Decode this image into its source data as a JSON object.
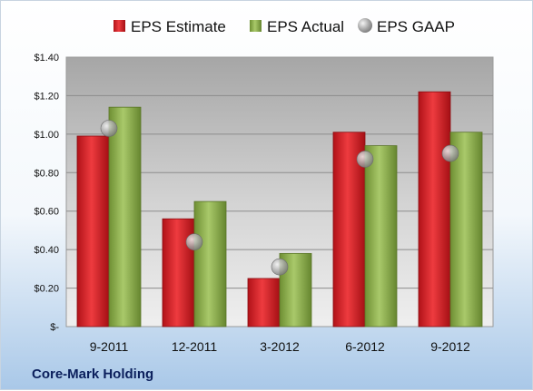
{
  "chart_data": {
    "type": "bar",
    "title": "",
    "xlabel": "",
    "ylabel": "",
    "categories": [
      "9-2011",
      "12-2011",
      "3-2012",
      "6-2012",
      "9-2012"
    ],
    "series": [
      {
        "name": "EPS Estimate",
        "kind": "bar",
        "color": "#d42028",
        "values": [
          0.99,
          0.56,
          0.25,
          1.01,
          1.22
        ]
      },
      {
        "name": "EPS Actual",
        "kind": "bar",
        "color": "#8db04a",
        "values": [
          1.14,
          0.65,
          0.38,
          0.94,
          1.01
        ]
      },
      {
        "name": "EPS GAAP",
        "kind": "marker",
        "color": "#a8a8a8",
        "values": [
          1.03,
          0.44,
          0.31,
          0.87,
          0.9
        ]
      }
    ],
    "ylim": [
      0,
      1.4
    ],
    "y_ticks": [
      0,
      0.2,
      0.4,
      0.6,
      0.8,
      1.0,
      1.2,
      1.4
    ],
    "y_tick_labels": [
      "$-",
      "$0.20",
      "$0.40",
      "$0.60",
      "$0.80",
      "$1.00",
      "$1.20",
      "$1.40"
    ],
    "grid": true,
    "legend_position": "top"
  },
  "footer": {
    "company": "Core-Mark Holding"
  }
}
